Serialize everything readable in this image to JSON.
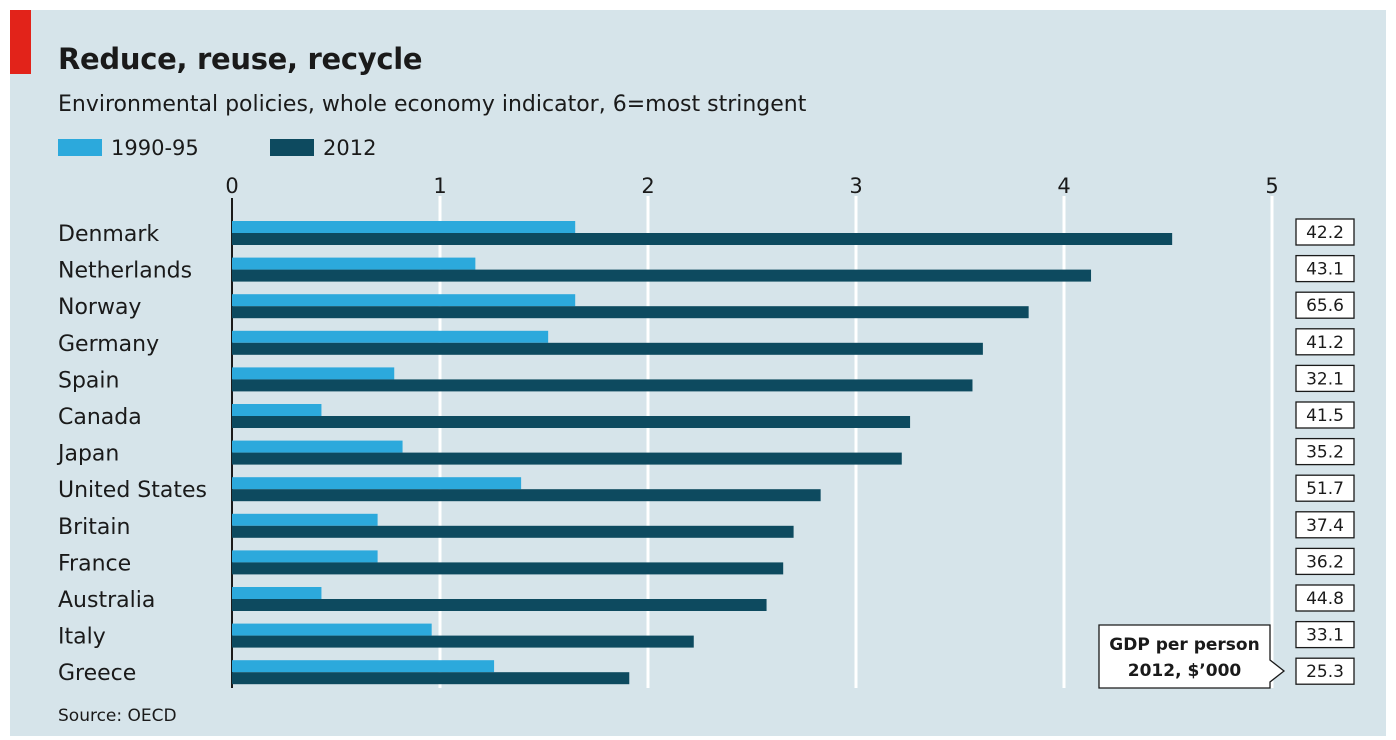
{
  "chart_data": {
    "type": "bar",
    "orientation": "horizontal",
    "title": "Reduce, reuse, recycle",
    "subtitle": "Environmental policies, whole economy indicator, 6=most stringent",
    "categories": [
      "Denmark",
      "Netherlands",
      "Norway",
      "Germany",
      "Spain",
      "Canada",
      "Japan",
      "United States",
      "Britain",
      "France",
      "Australia",
      "Italy",
      "Greece"
    ],
    "series": [
      {
        "name": "1990-95",
        "color": "#2ca9dc",
        "values": [
          1.65,
          1.17,
          1.65,
          1.52,
          0.78,
          0.43,
          0.82,
          1.39,
          0.7,
          0.7,
          0.43,
          0.96,
          1.26
        ]
      },
      {
        "name": "2012",
        "color": "#0d4a5f",
        "values": [
          4.52,
          4.13,
          3.83,
          3.61,
          3.56,
          3.26,
          3.22,
          2.83,
          2.7,
          2.65,
          2.57,
          2.22,
          1.91
        ]
      }
    ],
    "xlim": [
      0,
      5
    ],
    "xticks": [
      "0",
      "1",
      "2",
      "3",
      "4",
      "5"
    ],
    "grid": true,
    "legend_position": "top-left",
    "gdp_per_person": {
      "label_line1": "GDP per person",
      "label_line2": "2012, $’000",
      "values": [
        "42.2",
        "43.1",
        "65.6",
        "41.2",
        "32.1",
        "41.5",
        "35.2",
        "51.7",
        "37.4",
        "36.2",
        "44.8",
        "33.1",
        "25.3"
      ]
    },
    "source": "Source: OECD"
  }
}
